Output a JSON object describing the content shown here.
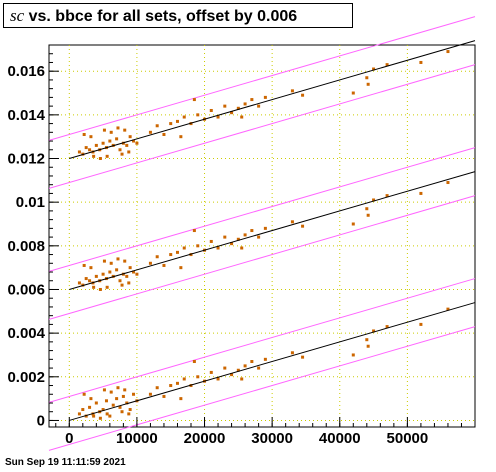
{
  "title": {
    "symbol": "sc",
    "text": " vs. bbce for all sets, offset by 0.006"
  },
  "footer": "Sun Sep 19 11:11:59 2021",
  "colors": {
    "points": "#cc6600",
    "fit": "#000000",
    "band": "#ff66ff",
    "grid": "#cccc00"
  },
  "chart_data": {
    "type": "scatter",
    "xlim": [
      -3000,
      60000
    ],
    "ylim": [
      -0.0003,
      0.0172
    ],
    "x_ticks": [
      0,
      10000,
      20000,
      30000,
      40000,
      50000
    ],
    "x_tick_labels": [
      "0",
      "10000",
      "20000",
      "30000",
      "40000",
      "50000"
    ],
    "y_ticks": [
      0,
      0.002,
      0.004,
      0.006,
      0.008,
      0.01,
      0.012,
      0.014,
      0.016
    ],
    "y_tick_labels": [
      "0",
      "0.002",
      "0.004",
      "0.006",
      "0.008",
      "0.01",
      "0.012",
      "0.014",
      "0.016"
    ],
    "grid": true,
    "fits": [
      {
        "intercept": 0.0,
        "slope": 9e-08
      },
      {
        "intercept": 0.006,
        "slope": 9e-08
      },
      {
        "intercept": 0.012,
        "slope": 9e-08
      }
    ],
    "band_offsets": [
      0.0011,
      -0.0011
    ],
    "points": [
      [
        1500,
        0.0003
      ],
      [
        2000,
        0.0005
      ],
      [
        2500,
        0.0002
      ],
      [
        3000,
        0.0006
      ],
      [
        3500,
        0.0003
      ],
      [
        4000,
        0.0008
      ],
      [
        4500,
        0.0004
      ],
      [
        5000,
        0.0005
      ],
      [
        5500,
        0.0009
      ],
      [
        6000,
        0.0002
      ],
      [
        6500,
        0.0007
      ],
      [
        7000,
        0.001
      ],
      [
        7500,
        0.0006
      ],
      [
        8000,
        0.0011
      ],
      [
        8500,
        0.0008
      ],
      [
        9000,
        0.0005
      ],
      [
        9500,
        0.0012
      ],
      [
        10000,
        0.0009
      ],
      [
        2200,
        0.0012
      ],
      [
        3200,
        0.001
      ],
      [
        5200,
        0.0014
      ],
      [
        6200,
        0.0013
      ],
      [
        7200,
        0.0015
      ],
      [
        8200,
        0.0014
      ],
      [
        3600,
        0.0002
      ],
      [
        4600,
        0.0001
      ],
      [
        5600,
        0.0003
      ],
      [
        7800,
        0.0004
      ],
      [
        8800,
        0.0003
      ],
      [
        12000,
        0.0012
      ],
      [
        13000,
        0.0015
      ],
      [
        14000,
        0.0011
      ],
      [
        15000,
        0.0016
      ],
      [
        16000,
        0.0017
      ],
      [
        17000,
        0.0019
      ],
      [
        18000,
        0.0016
      ],
      [
        19000,
        0.002
      ],
      [
        20000,
        0.0018
      ],
      [
        21000,
        0.0022
      ],
      [
        22000,
        0.0019
      ],
      [
        23000,
        0.0024
      ],
      [
        24000,
        0.0021
      ],
      [
        25000,
        0.0023
      ],
      [
        26000,
        0.0025
      ],
      [
        27000,
        0.0027
      ],
      [
        28000,
        0.0024
      ],
      [
        29000,
        0.0028
      ],
      [
        18500,
        0.0027
      ],
      [
        16500,
        0.001
      ],
      [
        25500,
        0.0019
      ],
      [
        33000,
        0.0031
      ],
      [
        34500,
        0.0029
      ],
      [
        42000,
        0.003
      ],
      [
        44000,
        0.0037
      ],
      [
        44200,
        0.0034
      ],
      [
        45000,
        0.0041
      ],
      [
        47000,
        0.0043
      ],
      [
        52000,
        0.0044
      ],
      [
        56000,
        0.0051
      ],
      [
        1500,
        0.0063
      ],
      [
        2000,
        0.0062
      ],
      [
        2500,
        0.0065
      ],
      [
        3000,
        0.0064
      ],
      [
        3500,
        0.0063
      ],
      [
        4000,
        0.0066
      ],
      [
        4500,
        0.0064
      ],
      [
        5000,
        0.0067
      ],
      [
        5500,
        0.0065
      ],
      [
        6000,
        0.0068
      ],
      [
        6500,
        0.0066
      ],
      [
        7000,
        0.0069
      ],
      [
        7500,
        0.0064
      ],
      [
        8000,
        0.0067
      ],
      [
        8500,
        0.0066
      ],
      [
        9000,
        0.007
      ],
      [
        9500,
        0.0068
      ],
      [
        10000,
        0.0067
      ],
      [
        2200,
        0.0071
      ],
      [
        3200,
        0.007
      ],
      [
        5200,
        0.0073
      ],
      [
        6200,
        0.0072
      ],
      [
        7200,
        0.0074
      ],
      [
        8200,
        0.0073
      ],
      [
        3600,
        0.0061
      ],
      [
        4600,
        0.006
      ],
      [
        5600,
        0.0061
      ],
      [
        7800,
        0.0062
      ],
      [
        8800,
        0.0063
      ],
      [
        12000,
        0.0072
      ],
      [
        13000,
        0.0075
      ],
      [
        14000,
        0.0071
      ],
      [
        15000,
        0.0076
      ],
      [
        16000,
        0.0077
      ],
      [
        17000,
        0.0079
      ],
      [
        18000,
        0.0076
      ],
      [
        19000,
        0.008
      ],
      [
        20000,
        0.0078
      ],
      [
        21000,
        0.0082
      ],
      [
        22000,
        0.0079
      ],
      [
        23000,
        0.0084
      ],
      [
        24000,
        0.0081
      ],
      [
        25000,
        0.0083
      ],
      [
        26000,
        0.0085
      ],
      [
        27000,
        0.0087
      ],
      [
        28000,
        0.0084
      ],
      [
        29000,
        0.0088
      ],
      [
        18500,
        0.0087
      ],
      [
        16500,
        0.007
      ],
      [
        25500,
        0.0079
      ],
      [
        33000,
        0.0091
      ],
      [
        34500,
        0.0089
      ],
      [
        42000,
        0.009
      ],
      [
        44000,
        0.0097
      ],
      [
        44200,
        0.0094
      ],
      [
        45000,
        0.0101
      ],
      [
        47000,
        0.0103
      ],
      [
        52000,
        0.0104
      ],
      [
        56000,
        0.0109
      ],
      [
        1500,
        0.0123
      ],
      [
        2000,
        0.0122
      ],
      [
        2500,
        0.0125
      ],
      [
        3000,
        0.0124
      ],
      [
        3500,
        0.0123
      ],
      [
        4000,
        0.0126
      ],
      [
        4500,
        0.0124
      ],
      [
        5000,
        0.0127
      ],
      [
        5500,
        0.0125
      ],
      [
        6000,
        0.0128
      ],
      [
        6500,
        0.0126
      ],
      [
        7000,
        0.0129
      ],
      [
        7500,
        0.0124
      ],
      [
        8000,
        0.0127
      ],
      [
        8500,
        0.0126
      ],
      [
        9000,
        0.013
      ],
      [
        9500,
        0.0128
      ],
      [
        10000,
        0.0127
      ],
      [
        2200,
        0.0131
      ],
      [
        3200,
        0.013
      ],
      [
        5200,
        0.0133
      ],
      [
        6200,
        0.0132
      ],
      [
        7200,
        0.0134
      ],
      [
        8200,
        0.0133
      ],
      [
        3600,
        0.0121
      ],
      [
        4600,
        0.012
      ],
      [
        5600,
        0.0121
      ],
      [
        7800,
        0.0122
      ],
      [
        8800,
        0.0123
      ],
      [
        12000,
        0.0132
      ],
      [
        13000,
        0.0135
      ],
      [
        14000,
        0.0131
      ],
      [
        15000,
        0.0136
      ],
      [
        16000,
        0.0137
      ],
      [
        17000,
        0.0139
      ],
      [
        18000,
        0.0136
      ],
      [
        19000,
        0.014
      ],
      [
        20000,
        0.0138
      ],
      [
        21000,
        0.0142
      ],
      [
        22000,
        0.0139
      ],
      [
        23000,
        0.0144
      ],
      [
        24000,
        0.0141
      ],
      [
        25000,
        0.0143
      ],
      [
        26000,
        0.0145
      ],
      [
        27000,
        0.0147
      ],
      [
        28000,
        0.0144
      ],
      [
        29000,
        0.0148
      ],
      [
        18500,
        0.0147
      ],
      [
        16500,
        0.013
      ],
      [
        25500,
        0.0139
      ],
      [
        33000,
        0.0151
      ],
      [
        34500,
        0.0149
      ],
      [
        42000,
        0.015
      ],
      [
        44000,
        0.0157
      ],
      [
        44200,
        0.0154
      ],
      [
        45000,
        0.0161
      ],
      [
        47000,
        0.0163
      ],
      [
        52000,
        0.0164
      ],
      [
        56000,
        0.0169
      ]
    ]
  }
}
